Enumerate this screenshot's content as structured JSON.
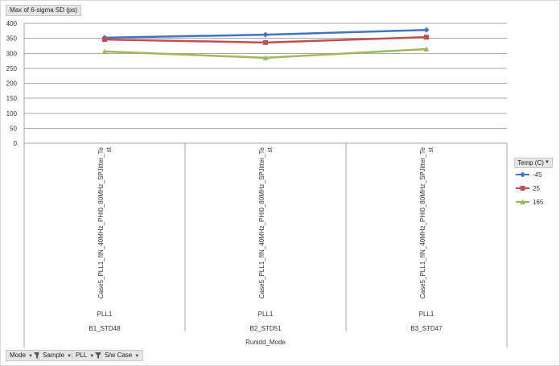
{
  "value_field": "Max of 6-sigma SD (ps)",
  "filters": [
    {
      "label": "Mode",
      "filtered": true
    },
    {
      "label": "Sample",
      "filtered": false
    },
    {
      "label": "PLL",
      "filtered": true
    },
    {
      "label": "S/w Case",
      "filtered": false
    }
  ],
  "legend": {
    "title": "Temp (C)",
    "items": [
      "-45",
      "25",
      "165"
    ]
  },
  "axis_field": "Runidd_Mode",
  "chart_data": {
    "type": "line",
    "categories": [
      {
        "case": "Case5_PLL1_fIN_40MHz_PHI0_80MHz_SPJitter_Te st",
        "pll": "PLL1",
        "runidd": "B1_STD48"
      },
      {
        "case": "Case5_PLL1_fIN_40MHz_PHI0_80MHz_SPJitter_Te st",
        "pll": "PLL1",
        "runidd": "B2_STD51"
      },
      {
        "case": "Case5_PLL1_fIN_40MHz_PHI0_80MHz_SPJitter_Te st",
        "pll": "PLL1",
        "runidd": "B3_STD47"
      }
    ],
    "series": [
      {
        "name": "-45",
        "values": [
          352,
          362,
          378
        ],
        "color": "#4472c4",
        "marker": "diamond"
      },
      {
        "name": "25",
        "values": [
          346,
          336,
          354
        ],
        "color": "#c0504d",
        "marker": "square"
      },
      {
        "name": "165",
        "values": [
          306,
          285,
          314
        ],
        "color": "#9bbb59",
        "marker": "triangle"
      }
    ],
    "ylim": [
      0,
      400
    ],
    "yticks": [
      0,
      50,
      100,
      150,
      200,
      250,
      300,
      350,
      400
    ],
    "grid": true,
    "legend_position": "right"
  }
}
